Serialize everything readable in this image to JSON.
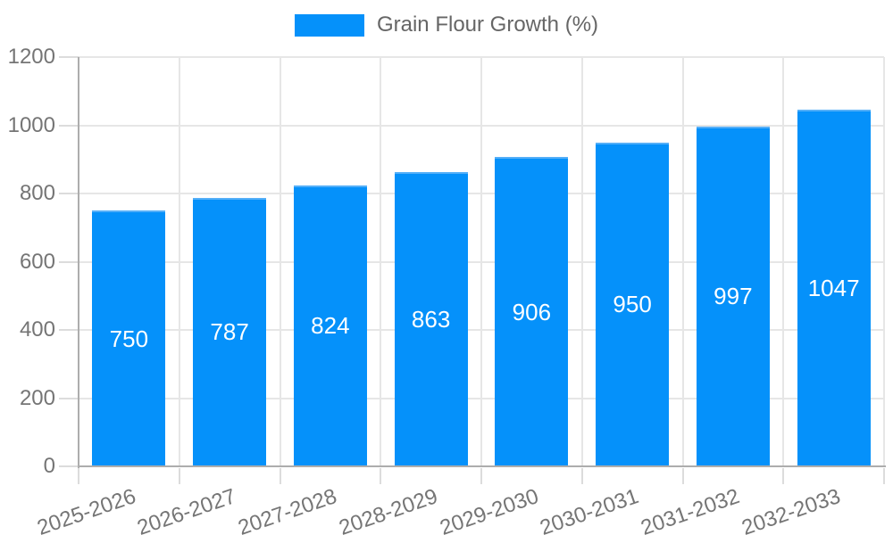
{
  "legend": {
    "label": "Grain Flour Growth (%)"
  },
  "chart_data": {
    "type": "bar",
    "title": "",
    "legend_entries": [
      "Grain Flour Growth (%)"
    ],
    "legend_position": "top",
    "series": [
      {
        "name": "Grain Flour Growth (%)",
        "values": [
          750,
          787,
          824,
          863,
          906,
          950,
          997,
          1047
        ]
      }
    ],
    "categories": [
      "2025-2026",
      "2026-2027",
      "2027-2028",
      "2028-2029",
      "2029-2030",
      "2030-2031",
      "2031-2032",
      "2032-2033"
    ],
    "data_labels_visible": true,
    "data_labels": [
      "750",
      "787",
      "824",
      "863",
      "906",
      "950",
      "997",
      "1047"
    ],
    "xlabel": "",
    "ylabel": "",
    "ylim": [
      0,
      1200
    ],
    "yticks": [
      0,
      200,
      400,
      600,
      800,
      1000,
      1200
    ],
    "grid": true,
    "colors": {
      "bar": "#0591fa",
      "bar_border": "#54aff8",
      "bar_label": "#ffffff",
      "grid": "#e6e6e6",
      "tick": "#dcdcdc",
      "axis": "#adadad",
      "tick_text": "#757575",
      "legend_text": "#666666"
    }
  }
}
